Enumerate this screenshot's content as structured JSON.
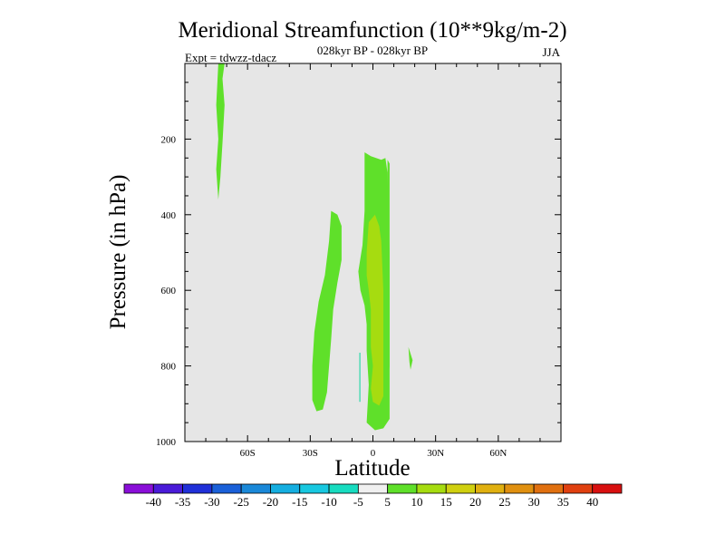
{
  "chart_data": {
    "type": "contour",
    "title": "Meridional Streamfunction (10**9kg/m-2)",
    "subtitle": "028kyr BP - 028kyr BP",
    "experiment": "Expt = tdwzz-tdacz",
    "season": "JJA",
    "xlabel": "Latitude",
    "ylabel": "Pressure (in hPa)",
    "xlim": [
      -90,
      90
    ],
    "ylim": [
      1000,
      0
    ],
    "x_ticks": [
      {
        "value": -60,
        "label": "60S"
      },
      {
        "value": -30,
        "label": "30S"
      },
      {
        "value": 0,
        "label": "0"
      },
      {
        "value": 30,
        "label": "30N"
      },
      {
        "value": 60,
        "label": "60N"
      }
    ],
    "y_ticks": [
      {
        "value": 200,
        "label": "200"
      },
      {
        "value": 400,
        "label": "400"
      },
      {
        "value": 600,
        "label": "600"
      },
      {
        "value": 800,
        "label": "800"
      },
      {
        "value": 1000,
        "label": "1000"
      }
    ],
    "regions": [
      {
        "name": "upper-southern-cell",
        "level": "5 to 10",
        "color": "#5fe02a",
        "points": [
          [
            -74,
            0
          ],
          [
            -71,
            0
          ],
          [
            -72,
            40
          ],
          [
            -71,
            110
          ],
          [
            -72,
            210
          ],
          [
            -73,
            300
          ],
          [
            -74,
            360
          ],
          [
            -75,
            280
          ],
          [
            -74,
            200
          ],
          [
            -75,
            110
          ]
        ]
      },
      {
        "name": "subtropical-southern-cell",
        "level": "5 to 10",
        "color": "#5fe02a",
        "points": [
          [
            -20,
            390
          ],
          [
            -17,
            400
          ],
          [
            -15,
            430
          ],
          [
            -15,
            520
          ],
          [
            -17,
            580
          ],
          [
            -19,
            650
          ],
          [
            -20,
            730
          ],
          [
            -21,
            800
          ],
          [
            -22,
            870
          ],
          [
            -24,
            915
          ],
          [
            -27,
            920
          ],
          [
            -29,
            890
          ],
          [
            -29,
            800
          ],
          [
            -28,
            710
          ],
          [
            -26,
            630
          ],
          [
            -23,
            560
          ],
          [
            -21,
            470
          ]
        ]
      },
      {
        "name": "equatorial-cell",
        "level": "5 to 10",
        "color": "#5fe02a",
        "points": [
          [
            -4,
            235
          ],
          [
            -1,
            245
          ],
          [
            4,
            255
          ],
          [
            6,
            250
          ],
          [
            7,
            290
          ],
          [
            8,
            500
          ],
          [
            8,
            700
          ],
          [
            8,
            940
          ],
          [
            5,
            965
          ],
          [
            1,
            970
          ],
          [
            -3,
            950
          ],
          [
            -2,
            850
          ],
          [
            -3,
            760
          ],
          [
            -3,
            690
          ],
          [
            -4,
            640
          ],
          [
            -6,
            600
          ],
          [
            -7,
            550
          ],
          [
            -5,
            480
          ],
          [
            -4,
            390
          ],
          [
            -4,
            300
          ]
        ]
      },
      {
        "name": "equatorial-core",
        "level": "10 to 15",
        "color": "#a6dc10",
        "points": [
          [
            -2,
            420
          ],
          [
            1,
            400
          ],
          [
            3,
            430
          ],
          [
            4,
            470
          ],
          [
            5,
            600
          ],
          [
            5,
            700
          ],
          [
            5,
            800
          ],
          [
            5,
            880
          ],
          [
            3,
            905
          ],
          [
            0,
            895
          ],
          [
            -1,
            860
          ],
          [
            0,
            800
          ],
          [
            -1,
            750
          ],
          [
            -1,
            700
          ],
          [
            -1,
            650
          ],
          [
            -2,
            600
          ],
          [
            -3,
            560
          ],
          [
            -3,
            500
          ]
        ]
      },
      {
        "name": "northern-sliver",
        "level": "5 to 10",
        "color": "#5fe02a",
        "points": [
          [
            7,
            255
          ],
          [
            8,
            265
          ],
          [
            8,
            700
          ],
          [
            8,
            800
          ],
          [
            7,
            850
          ],
          [
            7,
            700
          ],
          [
            7,
            400
          ]
        ]
      },
      {
        "name": "northern-spot",
        "level": "5 to 10",
        "color": "#5fe02a",
        "points": [
          [
            17,
            750
          ],
          [
            19,
            785
          ],
          [
            18,
            810
          ],
          [
            17.5,
            790
          ]
        ]
      },
      {
        "name": "southern-line",
        "level": "-5 to 5 boundary",
        "color": "#2bd8a8",
        "points": [
          [
            -6.5,
            765
          ],
          [
            -6,
            765
          ],
          [
            -6,
            895
          ],
          [
            -6.5,
            895
          ]
        ]
      }
    ],
    "colorbar": {
      "labels": [
        "-40",
        "-35",
        "-30",
        "-25",
        "-20",
        "-15",
        "-10",
        "-5",
        "5",
        "10",
        "15",
        "20",
        "25",
        "30",
        "35",
        "40"
      ],
      "colors": [
        "#8a0fd8",
        "#4a1bd8",
        "#2030d8",
        "#1a60d8",
        "#1a88d8",
        "#15aee0",
        "#18c8e0",
        "#18dcc0",
        "#f0f0f0",
        "#5fe02a",
        "#a6dc10",
        "#d0d010",
        "#e0b010",
        "#e09010",
        "#e07010",
        "#e04010",
        "#d81010"
      ]
    }
  }
}
